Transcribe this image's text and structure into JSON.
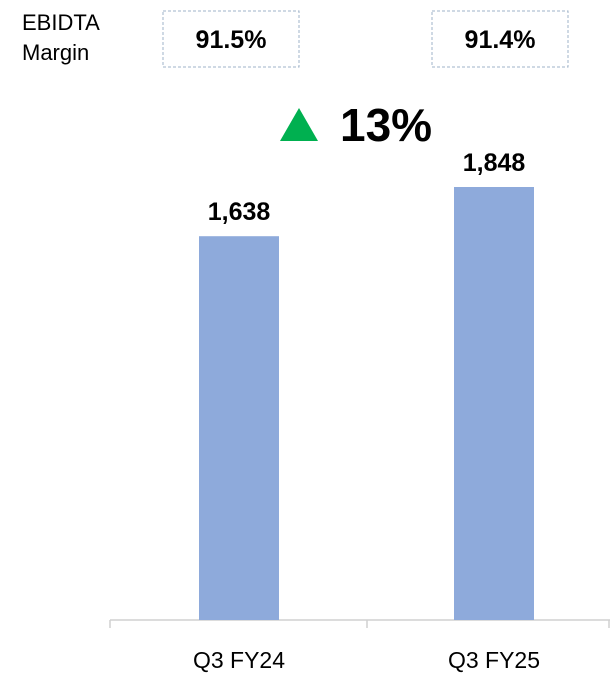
{
  "chart_data": {
    "type": "bar",
    "categories": [
      "Q3 FY24",
      "Q3 FY25"
    ],
    "values": [
      1638,
      1848
    ],
    "value_labels": [
      "1,638",
      "1,848"
    ],
    "color": "#8eaadb",
    "margin_title": "EBIDTA Margin",
    "margin_values": [
      91.5,
      91.4
    ],
    "margin_labels": [
      "91.5%",
      "91.4%"
    ],
    "growth_label": "13%",
    "growth_color": "#00b050"
  }
}
